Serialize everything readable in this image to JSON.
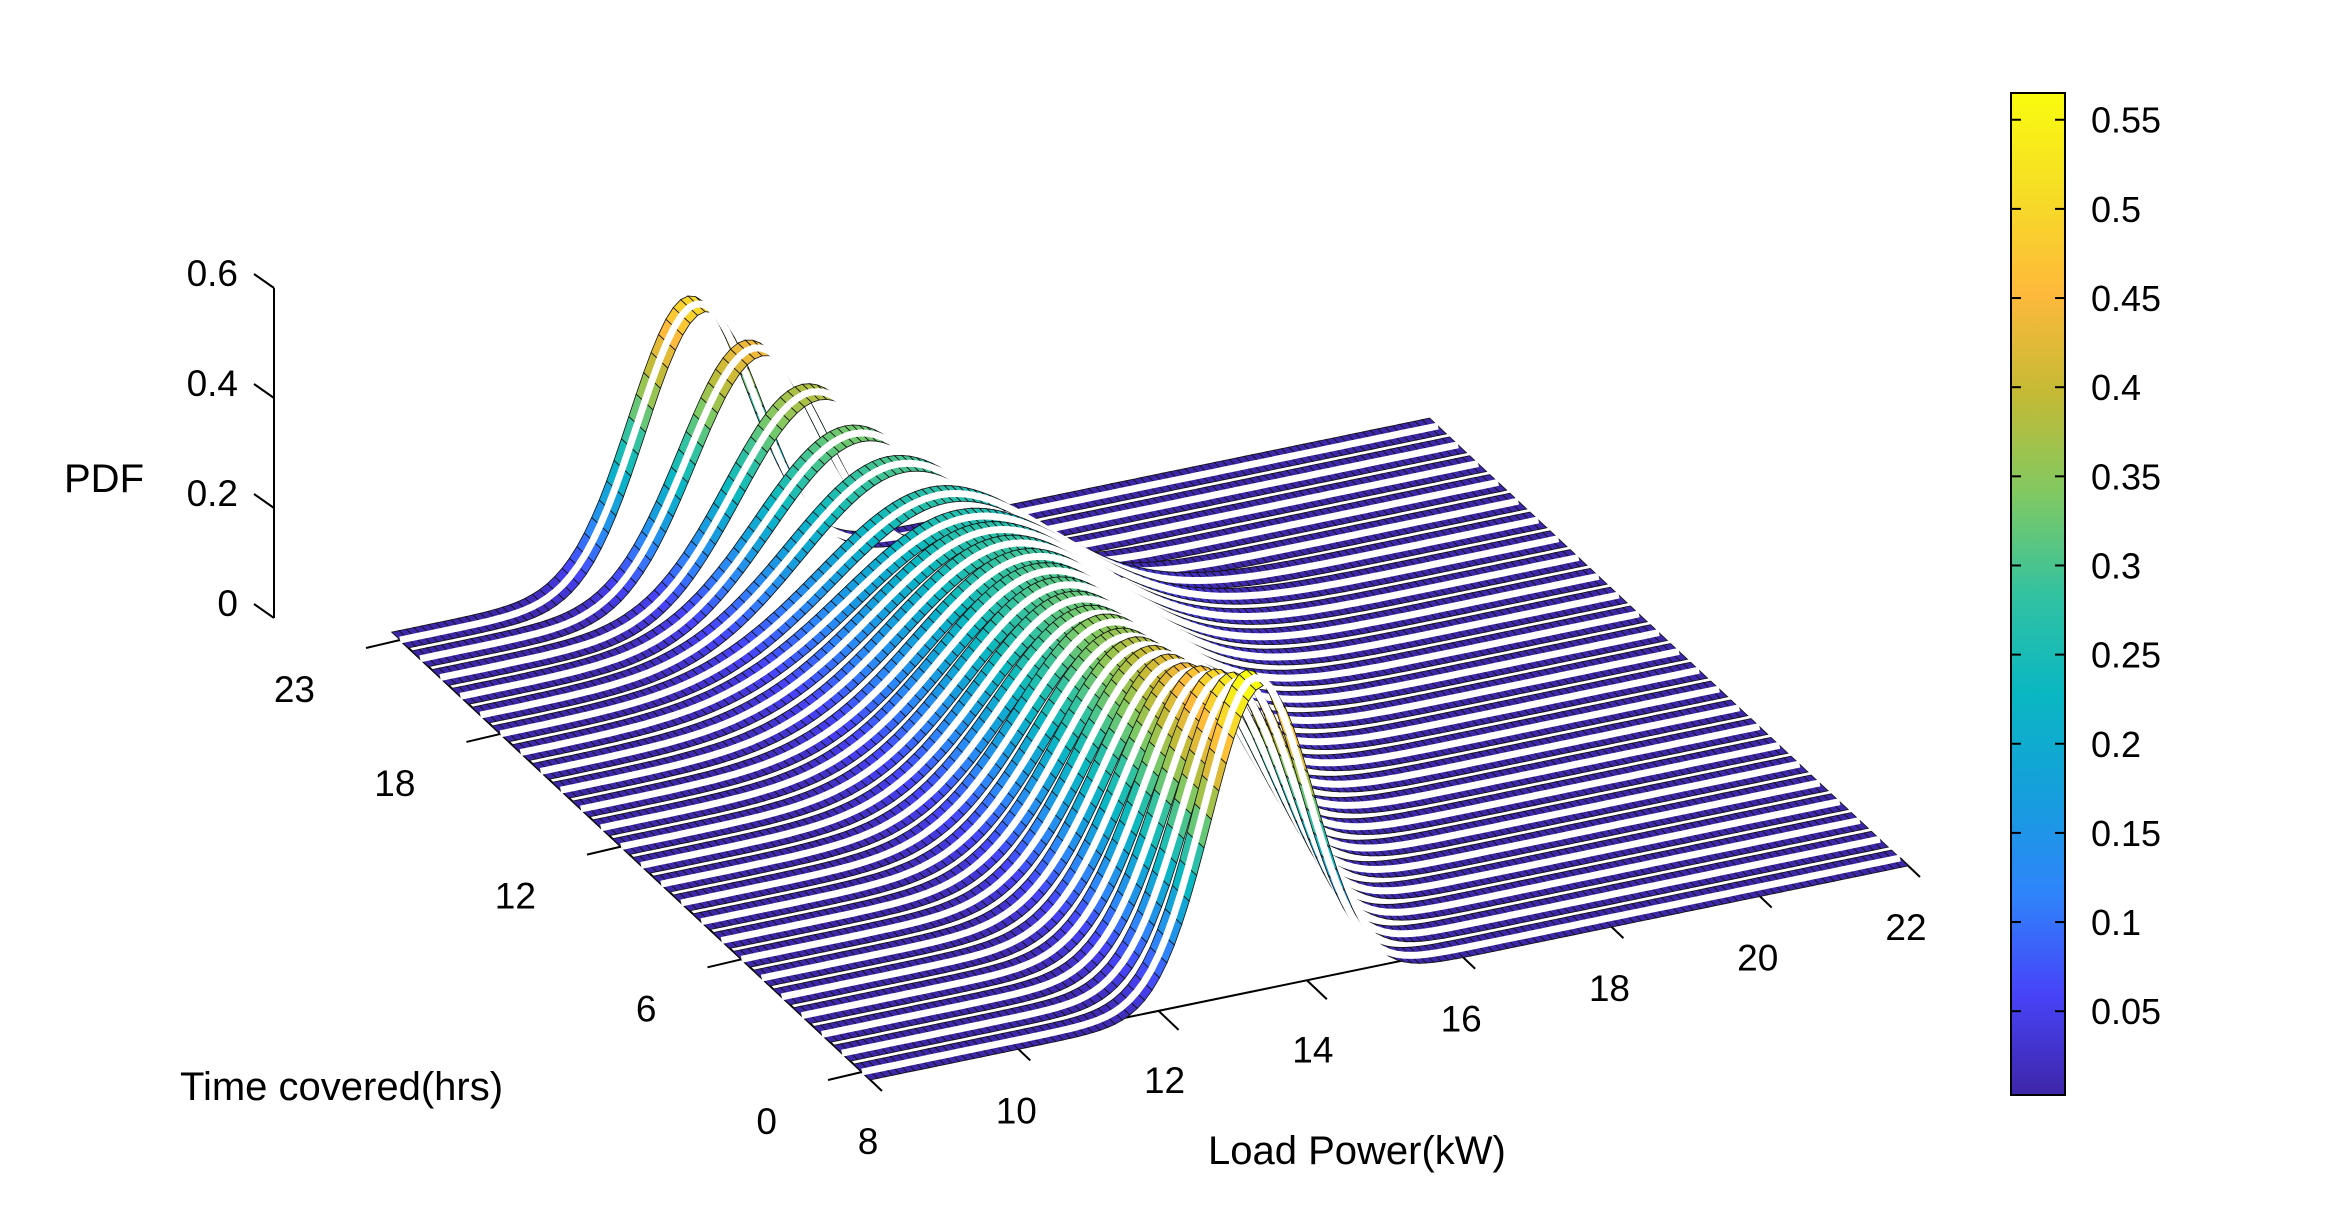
{
  "chart_data": {
    "type": "surface3d",
    "description_of_data": "Hourly probability density functions of load power: one Gaussian PDF curve per hour, drawn as a 3-D ribbon surface.",
    "x_axis": {
      "label": "Load Power(kW)",
      "range": [
        8,
        22
      ],
      "ticks": [
        "8",
        "10",
        "12",
        "14",
        "16",
        "18",
        "20",
        "22"
      ]
    },
    "y_axis": {
      "label": "Time covered(hrs)",
      "range": [
        0,
        23
      ],
      "ticks": [
        "0",
        "6",
        "12",
        "18",
        "23"
      ]
    },
    "z_axis": {
      "label": "PDF",
      "range": [
        0,
        0.6
      ],
      "ticks": [
        "0",
        "0.2",
        "0.4",
        "0.6"
      ]
    },
    "colorbar": {
      "range": [
        0.003,
        0.565
      ],
      "ticks": [
        "0.05",
        "0.1",
        "0.15",
        "0.2",
        "0.25",
        "0.3",
        "0.35",
        "0.4",
        "0.45",
        "0.5",
        "0.55"
      ],
      "colormap": "parula",
      "colors": [
        "#3e26a8",
        "#4743f8",
        "#2f84fb",
        "#159fdc",
        "#09b7c2",
        "#33c2a0",
        "#80c962",
        "#c4ba35",
        "#feb93b",
        "#f6dd26",
        "#f9fb0e"
      ]
    },
    "series": [
      {
        "hour": 0,
        "mean_kW": 13.3,
        "std_kW": 0.7,
        "peak_pdf": 0.57
      },
      {
        "hour": 1,
        "mean_kW": 13.35,
        "std_kW": 0.75,
        "peak_pdf": 0.53
      },
      {
        "hour": 2,
        "mean_kW": 13.4,
        "std_kW": 0.8,
        "peak_pdf": 0.5
      },
      {
        "hour": 3,
        "mean_kW": 13.45,
        "std_kW": 0.85,
        "peak_pdf": 0.47
      },
      {
        "hour": 4,
        "mean_kW": 13.5,
        "std_kW": 0.9,
        "peak_pdf": 0.44
      },
      {
        "hour": 5,
        "mean_kW": 13.55,
        "std_kW": 0.95,
        "peak_pdf": 0.42
      },
      {
        "hour": 6,
        "mean_kW": 13.6,
        "std_kW": 1.0,
        "peak_pdf": 0.4
      },
      {
        "hour": 7,
        "mean_kW": 13.65,
        "std_kW": 1.05,
        "peak_pdf": 0.38
      },
      {
        "hour": 8,
        "mean_kW": 13.7,
        "std_kW": 1.1,
        "peak_pdf": 0.36
      },
      {
        "hour": 9,
        "mean_kW": 13.75,
        "std_kW": 1.15,
        "peak_pdf": 0.35
      },
      {
        "hour": 10,
        "mean_kW": 13.8,
        "std_kW": 1.2,
        "peak_pdf": 0.33
      },
      {
        "hour": 11,
        "mean_kW": 13.85,
        "std_kW": 1.25,
        "peak_pdf": 0.32
      },
      {
        "hour": 12,
        "mean_kW": 13.9,
        "std_kW": 1.3,
        "peak_pdf": 0.31
      },
      {
        "hour": 13,
        "mean_kW": 13.95,
        "std_kW": 1.35,
        "peak_pdf": 0.3
      },
      {
        "hour": 14,
        "mean_kW": 14.0,
        "std_kW": 1.4,
        "peak_pdf": 0.29
      },
      {
        "hour": 15,
        "mean_kW": 14.0,
        "std_kW": 1.45,
        "peak_pdf": 0.28
      },
      {
        "hour": 16,
        "mean_kW": 14.0,
        "std_kW": 1.5,
        "peak_pdf": 0.27
      },
      {
        "hour": 17,
        "mean_kW": 14.0,
        "std_kW": 1.55,
        "peak_pdf": 0.26
      },
      {
        "hour": 18,
        "mean_kW": 13.9,
        "std_kW": 1.5,
        "peak_pdf": 0.27
      },
      {
        "hour": 19,
        "mean_kW": 13.6,
        "std_kW": 1.35,
        "peak_pdf": 0.3
      },
      {
        "hour": 20,
        "mean_kW": 13.3,
        "std_kW": 1.2,
        "peak_pdf": 0.33
      },
      {
        "hour": 21,
        "mean_kW": 13.0,
        "std_kW": 1.05,
        "peak_pdf": 0.38
      },
      {
        "hour": 22,
        "mean_kW": 12.5,
        "std_kW": 0.9,
        "peak_pdf": 0.44
      },
      {
        "hour": 23,
        "mean_kW": 12.0,
        "std_kW": 0.8,
        "peak_pdf": 0.5
      }
    ],
    "grid": false,
    "legend": "none"
  }
}
